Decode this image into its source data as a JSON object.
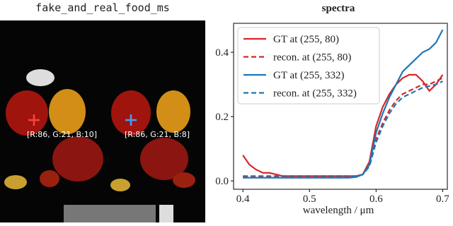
{
  "image_panel": {
    "title": "fake_and_real_food_ms",
    "pixel_labels": [
      "[R:86, G:21, B:10]",
      "[R:86, G:21, B:8]"
    ]
  },
  "chart_data": {
    "type": "line",
    "title": "spectra",
    "x_label": "wavelength / μm",
    "x": [
      0.4,
      0.41,
      0.42,
      0.43,
      0.44,
      0.45,
      0.46,
      0.47,
      0.48,
      0.49,
      0.5,
      0.51,
      0.52,
      0.53,
      0.54,
      0.55,
      0.56,
      0.57,
      0.58,
      0.59,
      0.6,
      0.61,
      0.62,
      0.63,
      0.64,
      0.65,
      0.66,
      0.67,
      0.68,
      0.69,
      0.7
    ],
    "series": [
      {
        "name": "GT at (255, 80)",
        "color": "#d62728",
        "dash": false,
        "values": [
          0.08,
          0.05,
          0.035,
          0.025,
          0.025,
          0.02,
          0.015,
          0.015,
          0.015,
          0.015,
          0.015,
          0.015,
          0.015,
          0.015,
          0.015,
          0.015,
          0.015,
          0.015,
          0.02,
          0.06,
          0.17,
          0.23,
          0.27,
          0.3,
          0.32,
          0.33,
          0.33,
          0.31,
          0.28,
          0.3,
          0.33
        ]
      },
      {
        "name": "recon. at (255, 80)",
        "color": "#d62728",
        "dash": true,
        "values": [
          0.015,
          0.015,
          0.015,
          0.015,
          0.015,
          0.015,
          0.015,
          0.015,
          0.015,
          0.015,
          0.015,
          0.015,
          0.015,
          0.015,
          0.015,
          0.015,
          0.015,
          0.015,
          0.02,
          0.05,
          0.13,
          0.18,
          0.22,
          0.25,
          0.27,
          0.28,
          0.29,
          0.3,
          0.3,
          0.31,
          0.32
        ]
      },
      {
        "name": "GT at (255, 332)",
        "color": "#1f77b4",
        "dash": false,
        "values": [
          0.01,
          0.01,
          0.01,
          0.01,
          0.01,
          0.01,
          0.01,
          0.01,
          0.01,
          0.01,
          0.01,
          0.01,
          0.01,
          0.01,
          0.01,
          0.01,
          0.01,
          0.012,
          0.02,
          0.05,
          0.15,
          0.21,
          0.26,
          0.3,
          0.34,
          0.36,
          0.38,
          0.4,
          0.41,
          0.43,
          0.47
        ]
      },
      {
        "name": "recon. at (255, 332)",
        "color": "#1f77b4",
        "dash": true,
        "values": [
          0.012,
          0.012,
          0.012,
          0.012,
          0.012,
          0.012,
          0.012,
          0.012,
          0.012,
          0.012,
          0.012,
          0.012,
          0.012,
          0.012,
          0.012,
          0.012,
          0.012,
          0.014,
          0.02,
          0.045,
          0.12,
          0.17,
          0.21,
          0.24,
          0.26,
          0.27,
          0.28,
          0.29,
          0.295,
          0.3,
          0.31
        ]
      }
    ],
    "xlim": [
      0.386,
      0.707
    ],
    "ylim": [
      -0.026,
      0.49
    ],
    "xticks": [
      0.4,
      0.5,
      0.6,
      0.7
    ],
    "yticks": [
      {
        "value": 0,
        "label": "0.0"
      },
      0.2,
      0.4
    ],
    "legend": "upper left"
  }
}
